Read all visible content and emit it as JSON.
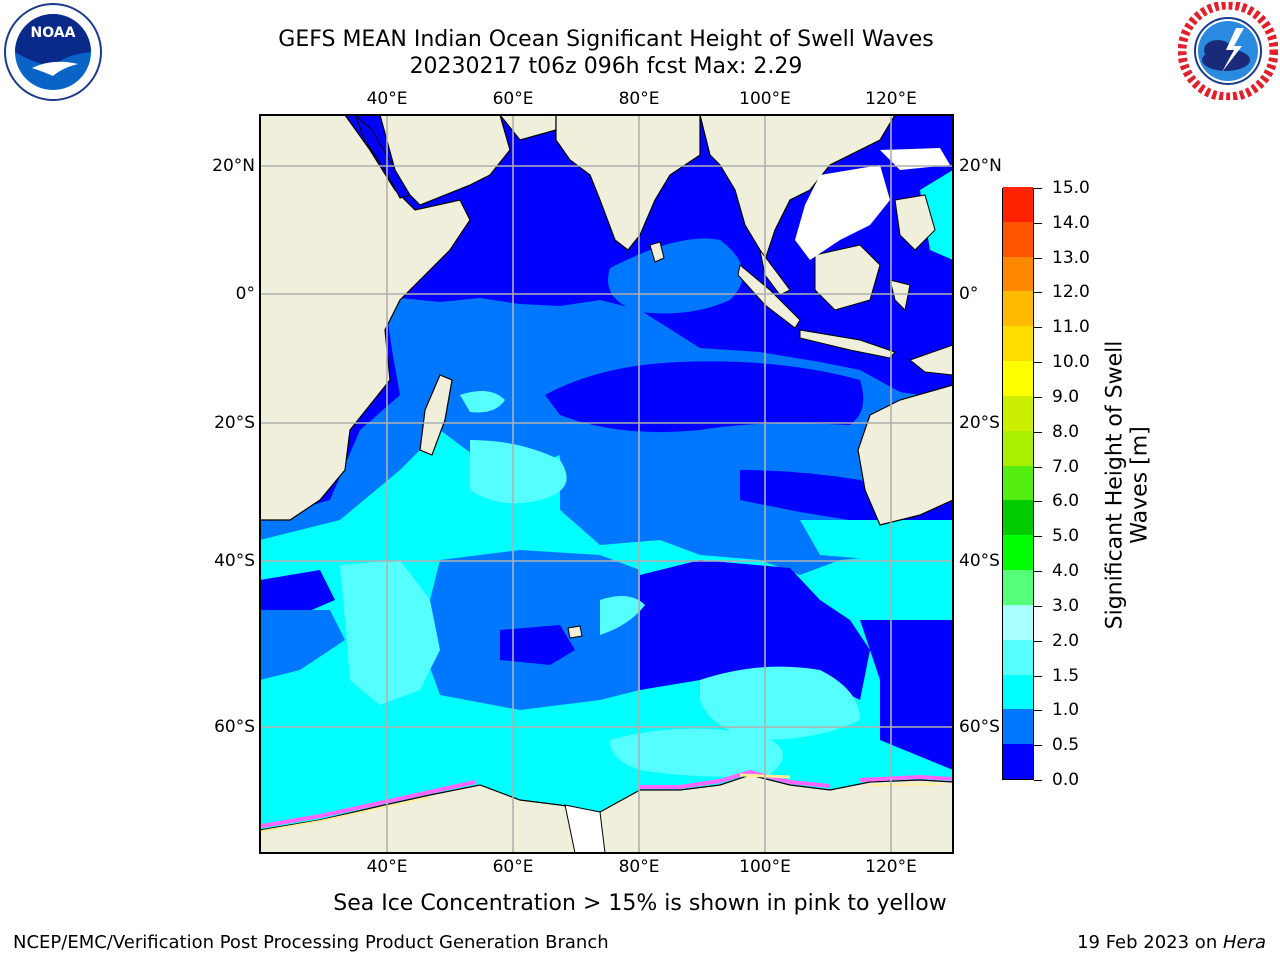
{
  "title": {
    "line1": "GEFS MEAN Indian Ocean Significant Height of Swell Waves",
    "line2": "20230217 t06z 096h fcst   Max: 2.29"
  },
  "logos": {
    "noaa": {
      "text": "NOAA",
      "ring_text": "NATIONAL OCEANIC AND ATMOSPHERIC ADMINISTRATION · U.S. DEPARTMENT OF COMMERCE"
    },
    "nws": {
      "ring_text": "NATIONAL WEATHER SERVICE"
    }
  },
  "map": {
    "lon_labels": [
      "40°E",
      "60°E",
      "80°E",
      "100°E",
      "120°E"
    ],
    "lat_labels_left": [
      "20°N",
      "0°",
      "20°S",
      "40°S",
      "60°S"
    ],
    "lat_labels_right": [
      "20°N",
      "0°",
      "20°S",
      "40°S",
      "60°S"
    ],
    "grid": true,
    "land_color": "#efefdc",
    "ice_colors": [
      "#ff66ff",
      "#ffffff",
      "#ffee99"
    ]
  },
  "colorbar": {
    "title": "Significant Height of Swell Waves [m]",
    "ticks": [
      "0.0",
      "0.5",
      "1.0",
      "1.5",
      "2.0",
      "3.0",
      "4.0",
      "5.0",
      "6.0",
      "7.0",
      "8.0",
      "9.0",
      "10.0",
      "11.0",
      "12.0",
      "13.0",
      "14.0",
      "15.0"
    ],
    "colors": [
      "#0000ff",
      "#0077ff",
      "#00ffff",
      "#55ffff",
      "#aaffff",
      "#55ff77",
      "#00ff00",
      "#00cc00",
      "#55ee11",
      "#aaee00",
      "#ccee00",
      "#ffff00",
      "#ffdd00",
      "#ffbb00",
      "#ff8800",
      "#ff5500",
      "#ff2200"
    ]
  },
  "footer": {
    "note": "Sea Ice Concentration > 15% is shown in pink to yellow",
    "left": "NCEP/EMC/Verification Post Processing Product Generation Branch",
    "right_prefix": "19 Feb 2023 on ",
    "right_machine": "Hera"
  }
}
